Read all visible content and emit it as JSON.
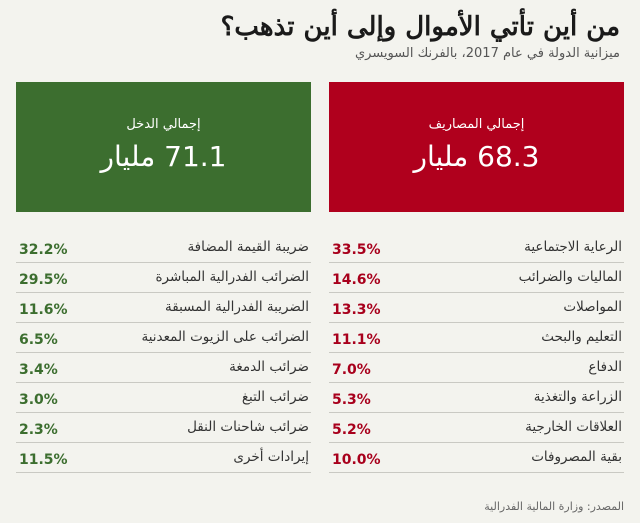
{
  "header": {
    "title": "من أين تأتي الأموال وإلى أين تذهب؟",
    "subtitle": "ميزانية الدولة في عام 2017، بالفرنك السويسري"
  },
  "totals": {
    "expenses_label": "إجمالي المصاريف",
    "expenses_value": "68.3 مليار",
    "income_label": "إجمالي الدخل",
    "income_value": "71.1 مليار"
  },
  "expenses": [
    {
      "label": "الرعاية الاجتماعية",
      "pct": "33.5%"
    },
    {
      "label": "الماليات والضرائب",
      "pct": "14.6%"
    },
    {
      "label": "المواصلات",
      "pct": "13.3%"
    },
    {
      "label": "التعليم والبحث",
      "pct": "11.1%"
    },
    {
      "label": "الدفاع",
      "pct": "7.0%"
    },
    {
      "label": "الزراعة والتغذية",
      "pct": "5.3%"
    },
    {
      "label": "العلاقات الخارجية",
      "pct": "5.2%"
    },
    {
      "label": "بقية المصروفات",
      "pct": "10.0%"
    }
  ],
  "income": [
    {
      "label": "ضريبة القيمة المضافة",
      "pct": "32.2%"
    },
    {
      "label": "الضرائب الفدرالية المباشرة",
      "pct": "29.5%"
    },
    {
      "label": "الضريبة الفدرالية المسبقة",
      "pct": "11.6%"
    },
    {
      "label": "الضرائب على الزيوت المعدنية",
      "pct": "6.5%"
    },
    {
      "label": "ضرائب الدمغة",
      "pct": "3.4%"
    },
    {
      "label": "ضرائب التبغ",
      "pct": "3.0%"
    },
    {
      "label": "ضرائب شاحنات النقل",
      "pct": "2.3%"
    },
    {
      "label": "إيرادات أخرى",
      "pct": "11.5%"
    }
  ],
  "source": "المصدر: وزارة المالية الفدرالية",
  "colors": {
    "expenses": "#b0001d",
    "income": "#3c6e2f"
  },
  "chart_data": {
    "type": "table",
    "title": "من أين تأتي الأموال وإلى أين تذهب؟",
    "subtitle": "ميزانية الدولة في عام 2017، بالفرنك السويسري",
    "columns": [
      "المصاريف",
      "الدخل"
    ],
    "series": [
      {
        "name": "إجمالي المصاريف",
        "total_billion_chf": 68.3,
        "categories": [
          "الرعاية الاجتماعية",
          "الماليات والضرائب",
          "المواصلات",
          "التعليم والبحث",
          "الدفاع",
          "الزراعة والتغذية",
          "العلاقات الخارجية",
          "بقية المصروفات"
        ],
        "values": [
          33.5,
          14.6,
          13.3,
          11.1,
          7.0,
          5.3,
          5.2,
          10.0
        ]
      },
      {
        "name": "إجمالي الدخل",
        "total_billion_chf": 71.1,
        "categories": [
          "ضريبة القيمة المضافة",
          "الضرائب الفدرالية المباشرة",
          "الضريبة الفدرالية المسبقة",
          "الضرائب على الزيوت المعدنية",
          "ضرائب الدمغة",
          "ضرائب التبغ",
          "ضرائب شاحنات النقل",
          "إيرادات أخرى"
        ],
        "values": [
          32.2,
          29.5,
          11.6,
          6.5,
          3.4,
          3.0,
          2.3,
          11.5
        ]
      }
    ]
  }
}
